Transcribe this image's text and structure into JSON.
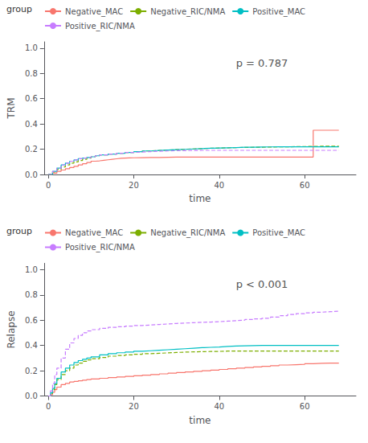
{
  "chart_data": [
    {
      "type": "step",
      "xlabel": "time",
      "ylabel": "TRM",
      "annotations": [
        "p = 0.787"
      ],
      "legend": "top",
      "legend_title": "group",
      "grid": false,
      "xlim": [
        -1,
        72
      ],
      "xticks": [
        0,
        20,
        40,
        60
      ],
      "ylim": [
        0,
        1.05
      ],
      "yticks": [
        {
          "value": 0.0,
          "label": "0.0"
        },
        0.2,
        0.4,
        0.6,
        0.8,
        {
          "value": 1.0,
          "label": "1.0"
        }
      ],
      "series": [
        {
          "name": "Negative_MAC",
          "color": "#F8766D",
          "line_style": "solid",
          "x": [
            0,
            1,
            2,
            3,
            4,
            5,
            6,
            7,
            8,
            9,
            10,
            11,
            12,
            13,
            14,
            15,
            16,
            17,
            18,
            19,
            20,
            22,
            24,
            26,
            28,
            30,
            32,
            34,
            36,
            38,
            40,
            42,
            44,
            46,
            48,
            50,
            52,
            54,
            56,
            58,
            60,
            61,
            62,
            68
          ],
          "values": [
            0,
            0.01,
            0.025,
            0.035,
            0.045,
            0.055,
            0.065,
            0.075,
            0.085,
            0.095,
            0.105,
            0.108,
            0.112,
            0.116,
            0.12,
            0.124,
            0.128,
            0.13,
            0.131,
            0.132,
            0.133,
            0.134,
            0.135,
            0.136,
            0.137,
            0.138,
            0.138,
            0.138,
            0.138,
            0.138,
            0.138,
            0.138,
            0.138,
            0.138,
            0.138,
            0.138,
            0.138,
            0.138,
            0.138,
            0.138,
            0.138,
            0.138,
            0.35,
            0.35
          ]
        },
        {
          "name": "Negative_RIC/NMA",
          "color": "#7CAE00",
          "line_style": "dashed",
          "x": [
            0,
            1,
            2,
            3,
            4,
            5,
            6,
            7,
            8,
            9,
            10,
            11,
            12,
            14,
            16,
            18,
            20,
            22,
            24,
            26,
            28,
            30,
            32,
            34,
            36,
            38,
            40,
            42,
            44,
            46,
            48,
            50,
            52,
            54,
            56,
            58,
            60,
            62,
            64,
            68
          ],
          "values": [
            0,
            0.02,
            0.04,
            0.06,
            0.075,
            0.09,
            0.1,
            0.11,
            0.12,
            0.13,
            0.14,
            0.148,
            0.155,
            0.162,
            0.168,
            0.174,
            0.18,
            0.186,
            0.19,
            0.193,
            0.196,
            0.199,
            0.202,
            0.205,
            0.207,
            0.209,
            0.211,
            0.213,
            0.214,
            0.215,
            0.216,
            0.217,
            0.218,
            0.219,
            0.22,
            0.221,
            0.222,
            0.223,
            0.224,
            0.225
          ]
        },
        {
          "name": "Positive_MAC",
          "color": "#00BFC4",
          "line_style": "solid",
          "x": [
            0,
            1,
            2,
            3,
            4,
            5,
            6,
            7,
            8,
            9,
            10,
            11,
            12,
            14,
            16,
            18,
            20,
            22,
            24,
            26,
            28,
            30,
            32,
            34,
            36,
            38,
            40,
            42,
            44,
            46,
            48,
            50,
            52,
            54,
            56,
            58,
            60,
            62,
            64,
            68
          ],
          "values": [
            0,
            0.025,
            0.05,
            0.075,
            0.09,
            0.105,
            0.115,
            0.125,
            0.13,
            0.135,
            0.14,
            0.148,
            0.155,
            0.162,
            0.168,
            0.174,
            0.18,
            0.186,
            0.19,
            0.193,
            0.196,
            0.199,
            0.202,
            0.205,
            0.207,
            0.209,
            0.211,
            0.213,
            0.215,
            0.216,
            0.217,
            0.218,
            0.219,
            0.219,
            0.219,
            0.219,
            0.219,
            0.219,
            0.219,
            0.219
          ]
        },
        {
          "name": "Positive_RIC/NMA",
          "color": "#C77CFF",
          "line_style": "dashed",
          "x": [
            0,
            1,
            2,
            3,
            4,
            5,
            6,
            7,
            8,
            9,
            10,
            11,
            12,
            14,
            16,
            18,
            20,
            22,
            24,
            26,
            28,
            30,
            32,
            34,
            36,
            38,
            40,
            42,
            44,
            46,
            48,
            50,
            52,
            54,
            56,
            58,
            60,
            62,
            64,
            68
          ],
          "values": [
            0,
            0.025,
            0.05,
            0.075,
            0.09,
            0.105,
            0.115,
            0.125,
            0.13,
            0.135,
            0.14,
            0.148,
            0.155,
            0.162,
            0.168,
            0.174,
            0.178,
            0.181,
            0.184,
            0.186,
            0.188,
            0.189,
            0.19,
            0.191,
            0.191,
            0.191,
            0.191,
            0.191,
            0.191,
            0.191,
            0.191,
            0.191,
            0.191,
            0.191,
            0.191,
            0.191,
            0.191,
            0.191,
            0.191,
            0.191
          ]
        }
      ]
    },
    {
      "type": "step",
      "xlabel": "time",
      "ylabel": "Relapse",
      "annotations": [
        "p < 0.001"
      ],
      "legend": "top",
      "legend_title": "group",
      "grid": false,
      "xlim": [
        -1,
        72
      ],
      "xticks": [
        0,
        20,
        40,
        60
      ],
      "ylim": [
        0,
        1.05
      ],
      "yticks": [
        {
          "value": 0.0,
          "label": "0.0"
        },
        0.2,
        0.4,
        0.6,
        0.8,
        {
          "value": 1.0,
          "label": "1.0"
        }
      ],
      "series": [
        {
          "name": "Negative_MAC",
          "color": "#F8766D",
          "line_style": "solid",
          "x": [
            0,
            0.5,
            1,
            1.5,
            2,
            3,
            4,
            5,
            6,
            7,
            8,
            9,
            10,
            12,
            14,
            16,
            18,
            20,
            22,
            24,
            26,
            28,
            30,
            32,
            34,
            36,
            38,
            40,
            42,
            44,
            46,
            48,
            50,
            52,
            54,
            56,
            58,
            60,
            62,
            64,
            66,
            68
          ],
          "values": [
            0,
            0.01,
            0.03,
            0.05,
            0.07,
            0.09,
            0.1,
            0.11,
            0.115,
            0.12,
            0.125,
            0.13,
            0.135,
            0.14,
            0.145,
            0.15,
            0.155,
            0.16,
            0.165,
            0.17,
            0.175,
            0.18,
            0.185,
            0.19,
            0.195,
            0.2,
            0.205,
            0.21,
            0.215,
            0.22,
            0.225,
            0.23,
            0.235,
            0.24,
            0.245,
            0.248,
            0.25,
            0.255,
            0.258,
            0.26,
            0.26,
            0.26
          ]
        },
        {
          "name": "Negative_RIC/NMA",
          "color": "#7CAE00",
          "line_style": "dashed",
          "x": [
            0,
            0.5,
            1,
            1.5,
            2,
            3,
            4,
            5,
            6,
            7,
            8,
            9,
            10,
            12,
            14,
            16,
            18,
            20,
            22,
            24,
            26,
            28,
            30,
            32,
            34,
            36,
            38,
            40,
            42,
            44,
            46,
            48,
            50,
            52,
            54,
            56,
            58,
            60,
            62,
            64,
            66,
            68
          ],
          "values": [
            0,
            0.02,
            0.05,
            0.09,
            0.13,
            0.17,
            0.2,
            0.22,
            0.245,
            0.26,
            0.275,
            0.285,
            0.295,
            0.305,
            0.315,
            0.32,
            0.325,
            0.33,
            0.335,
            0.338,
            0.341,
            0.344,
            0.347,
            0.349,
            0.351,
            0.352,
            0.353,
            0.355,
            0.356,
            0.356,
            0.356,
            0.356,
            0.356,
            0.356,
            0.356,
            0.356,
            0.356,
            0.356,
            0.356,
            0.356,
            0.356,
            0.356
          ]
        },
        {
          "name": "Positive_MAC",
          "color": "#00BFC4",
          "line_style": "solid",
          "x": [
            0,
            0.5,
            1,
            1.5,
            2,
            3,
            4,
            5,
            6,
            7,
            8,
            9,
            10,
            12,
            14,
            16,
            18,
            20,
            22,
            24,
            26,
            28,
            30,
            32,
            34,
            36,
            38,
            40,
            42,
            44,
            46,
            48,
            50,
            52,
            54,
            56,
            58,
            60,
            62,
            64,
            66,
            68
          ],
          "values": [
            0,
            0.025,
            0.06,
            0.1,
            0.14,
            0.19,
            0.22,
            0.245,
            0.265,
            0.28,
            0.29,
            0.3,
            0.31,
            0.325,
            0.335,
            0.342,
            0.348,
            0.354,
            0.358,
            0.362,
            0.366,
            0.37,
            0.374,
            0.378,
            0.382,
            0.385,
            0.388,
            0.392,
            0.395,
            0.397,
            0.399,
            0.4,
            0.4,
            0.4,
            0.4,
            0.4,
            0.4,
            0.4,
            0.4,
            0.4,
            0.4,
            0.4
          ]
        },
        {
          "name": "Positive_RIC/NMA",
          "color": "#C77CFF",
          "line_style": "dashed",
          "x": [
            0,
            0.5,
            1,
            1.5,
            2,
            3,
            4,
            5,
            6,
            7,
            8,
            9,
            10,
            12,
            14,
            16,
            18,
            20,
            22,
            24,
            26,
            28,
            30,
            32,
            34,
            36,
            38,
            40,
            42,
            44,
            46,
            48,
            50,
            52,
            54,
            56,
            58,
            60,
            62,
            64,
            66,
            68
          ],
          "values": [
            0,
            0.04,
            0.1,
            0.17,
            0.22,
            0.3,
            0.37,
            0.42,
            0.455,
            0.48,
            0.5,
            0.515,
            0.525,
            0.535,
            0.543,
            0.548,
            0.553,
            0.558,
            0.562,
            0.566,
            0.57,
            0.574,
            0.577,
            0.58,
            0.583,
            0.585,
            0.588,
            0.592,
            0.596,
            0.6,
            0.605,
            0.61,
            0.615,
            0.625,
            0.635,
            0.645,
            0.652,
            0.658,
            0.663,
            0.667,
            0.671,
            0.675
          ]
        }
      ]
    }
  ]
}
